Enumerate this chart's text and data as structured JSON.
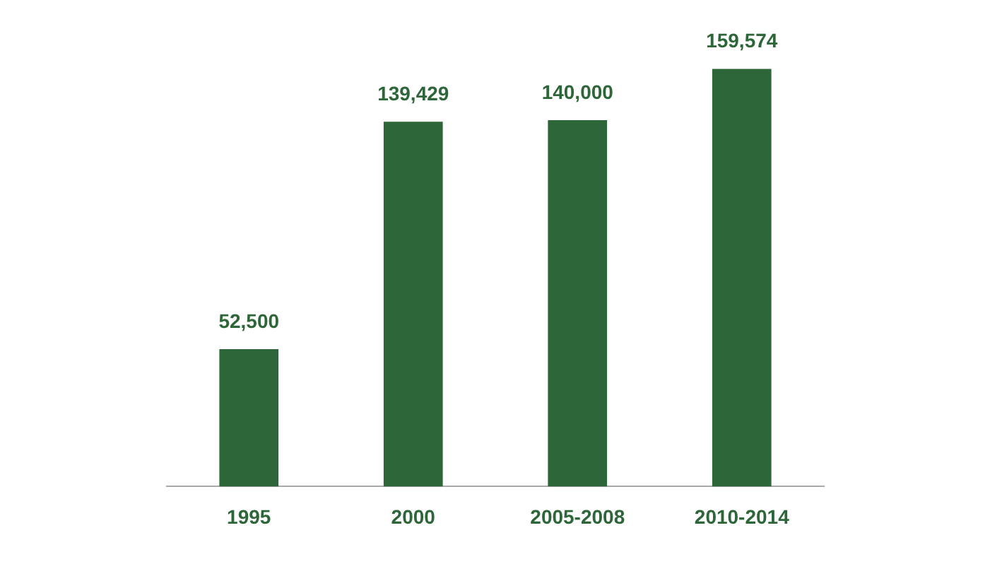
{
  "chart_data": {
    "type": "bar",
    "categories": [
      "1995",
      "2000",
      "2005-2008",
      "2010-2014"
    ],
    "values": [
      52500,
      139429,
      140000,
      159574
    ],
    "value_labels": [
      "52,500",
      "139,429",
      "140,000",
      "159,574"
    ],
    "color": "#2d6638",
    "grid": false,
    "legend": false,
    "tick_labels": "x"
  }
}
